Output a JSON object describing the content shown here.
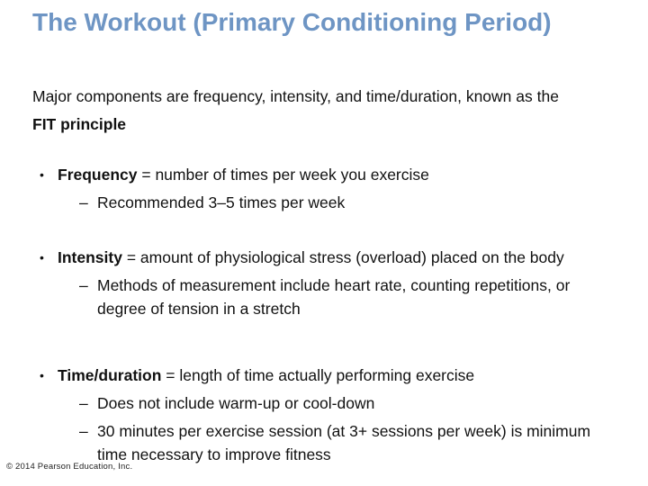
{
  "slide": {
    "title": "The Workout (Primary Conditioning Period)",
    "intro_pre": "Major components are frequency, intensity, and time/duration, known as the ",
    "intro_bold": "FIT principle",
    "bullet_char": "•",
    "dash_char": "–",
    "bullets": [
      {
        "term": "Frequency",
        "rest": " = number of times per week you exercise",
        "subs": [
          "Recommended 3–5 times per week"
        ]
      },
      {
        "term": "Intensity",
        "rest": " = amount of physiological stress (overload) placed on the body",
        "subs": [
          "Methods of measurement include heart rate, counting repetitions, or degree of tension in a stretch"
        ]
      },
      {
        "term": "Time/duration",
        "rest": " = length of time actually performing exercise",
        "subs": [
          "Does not include warm-up or cool-down",
          "30 minutes per exercise session (at 3+ sessions per week) is minimum time necessary to improve fitness"
        ]
      }
    ],
    "footer": "© 2014 Pearson Education, Inc.",
    "colors": {
      "title": "#6e95c4",
      "text": "#111111",
      "background": "#ffffff"
    }
  }
}
